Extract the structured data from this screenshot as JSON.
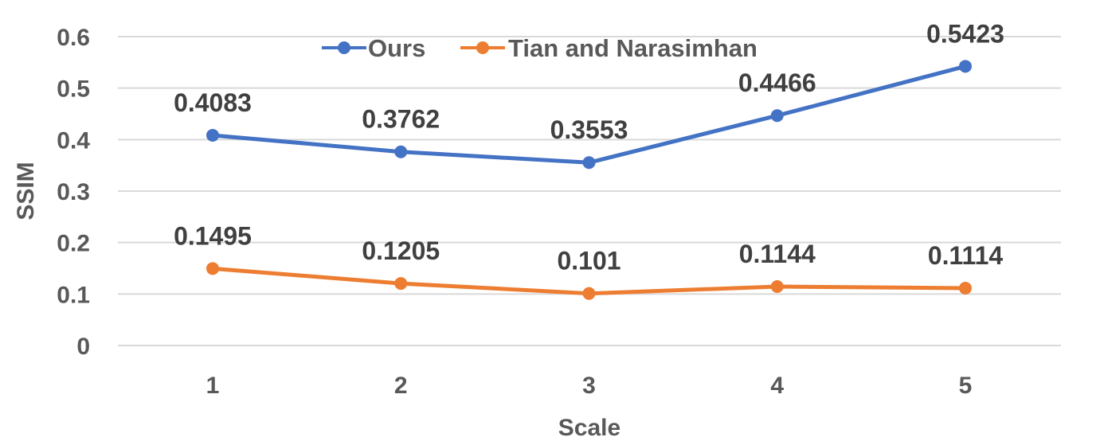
{
  "chart_data": {
    "type": "line",
    "title": "",
    "xlabel": "Scale",
    "ylabel": "SSIM",
    "categories": [
      "1",
      "2",
      "3",
      "4",
      "5"
    ],
    "ylim": [
      0,
      0.6
    ],
    "yticks": [
      "0",
      "0.1",
      "0.2",
      "0.3",
      "0.4",
      "0.5",
      "0.6"
    ],
    "grid": true,
    "legend_position": "top",
    "series": [
      {
        "name": "Ours",
        "color": "#4472C4",
        "values": [
          0.4083,
          0.3762,
          0.3553,
          0.4466,
          0.5423
        ],
        "labels": [
          "0.4083",
          "0.3762",
          "0.3553",
          "0.4466",
          "0.5423"
        ]
      },
      {
        "name": "Tian and Narasimhan",
        "color": "#ED7D31",
        "values": [
          0.1495,
          0.1205,
          0.101,
          0.1144,
          0.1114
        ],
        "labels": [
          "0.1495",
          "0.1205",
          "0.101",
          "0.1144",
          "0.1114"
        ]
      }
    ]
  }
}
